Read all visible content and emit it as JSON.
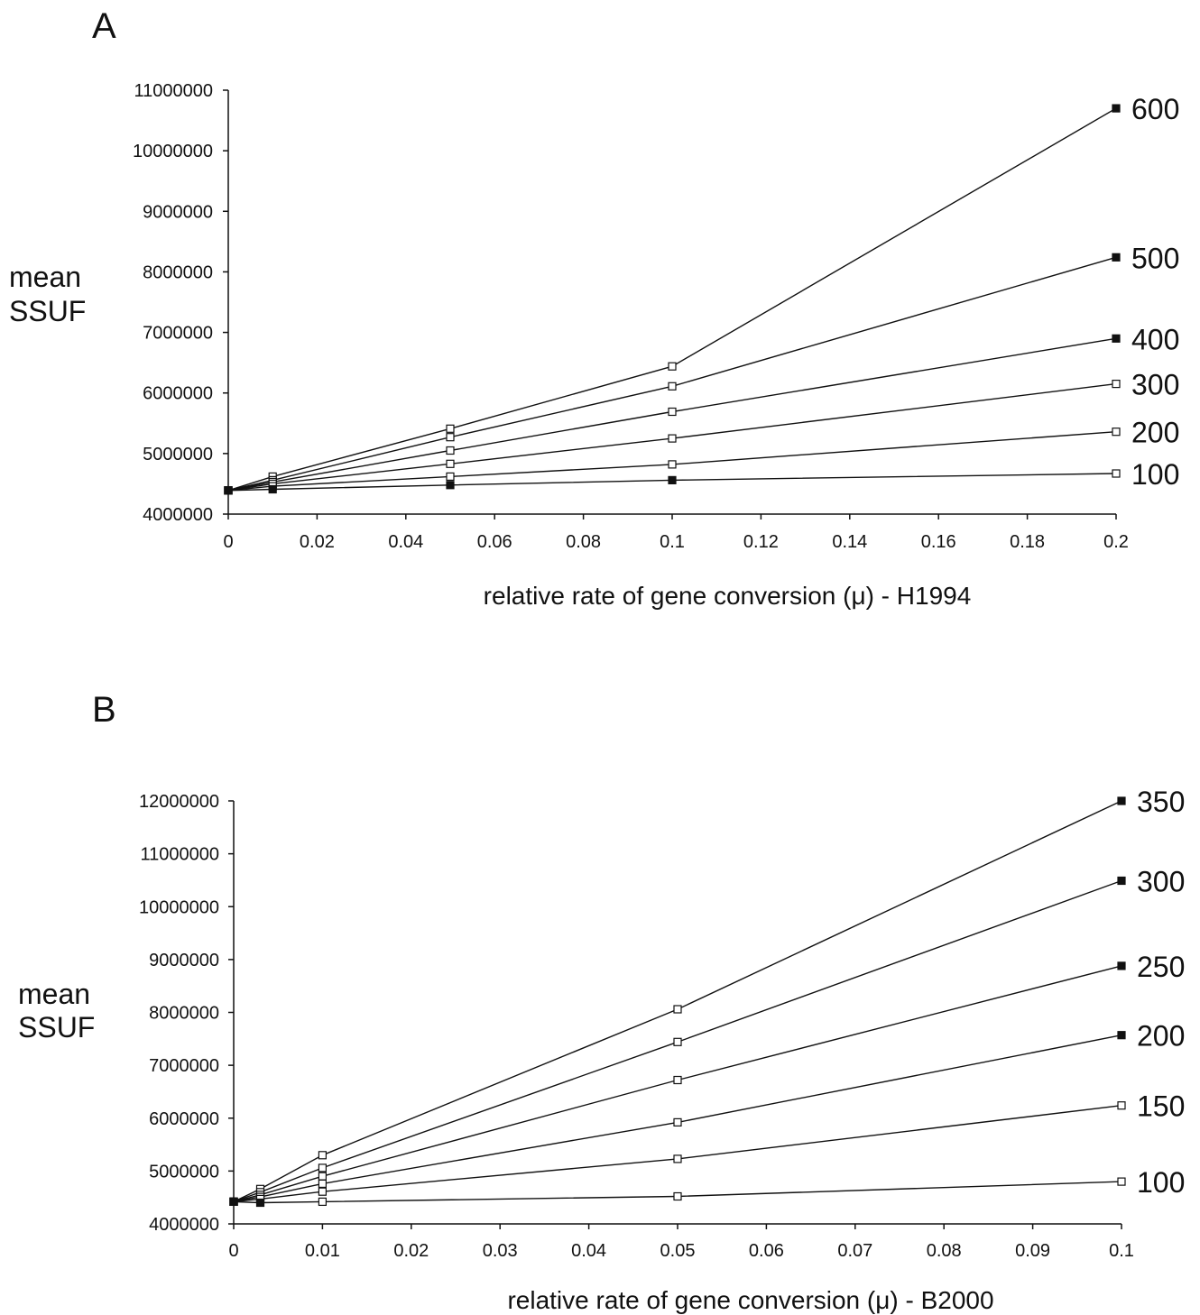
{
  "chart_data": [
    {
      "panel": "A",
      "type": "line",
      "xlabel": "relative rate of gene conversion (μ) - H1994",
      "ylabel": [
        "mean",
        "SSUF"
      ],
      "xlim": [
        0,
        0.2
      ],
      "ylim": [
        4000000,
        11000000
      ],
      "xticks": [
        "0",
        "0.02",
        "0.04",
        "0.06",
        "0.08",
        "0.1",
        "0.12",
        "0.14",
        "0.16",
        "0.18",
        "0.2"
      ],
      "yticks": [
        "4000000",
        "5000000",
        "6000000",
        "7000000",
        "8000000",
        "9000000",
        "10000000",
        "11000000"
      ],
      "grid": false,
      "x": [
        0,
        0.01,
        0.05,
        0.1,
        0.2
      ],
      "series": [
        {
          "name": "600",
          "values": [
            4390000,
            4620000,
            5410000,
            6440000,
            10700000
          ]
        },
        {
          "name": "500",
          "values": [
            4390000,
            4560000,
            5270000,
            6110000,
            8240000
          ]
        },
        {
          "name": "400",
          "values": [
            4390000,
            4530000,
            5050000,
            5690000,
            6900000
          ]
        },
        {
          "name": "300",
          "values": [
            4390000,
            4500000,
            4830000,
            5250000,
            6150000
          ]
        },
        {
          "name": "200",
          "values": [
            4390000,
            4460000,
            4620000,
            4820000,
            5360000
          ]
        },
        {
          "name": "100",
          "values": [
            4390000,
            4410000,
            4480000,
            4560000,
            4670000
          ]
        }
      ],
      "marker_fill": [
        [
          1,
          0,
          0,
          0,
          1
        ],
        [
          1,
          0,
          0,
          0,
          1
        ],
        [
          1,
          0,
          0,
          0,
          1
        ],
        [
          1,
          0,
          0,
          0,
          0
        ],
        [
          1,
          0,
          0,
          0,
          0
        ],
        [
          1,
          1,
          1,
          1,
          0
        ]
      ]
    },
    {
      "panel": "B",
      "type": "line",
      "xlabel": "relative rate of gene conversion (μ) - B2000",
      "ylabel": [
        "mean",
        "SSUF"
      ],
      "xlim": [
        0,
        0.1
      ],
      "ylim": [
        4000000,
        12000000
      ],
      "xticks": [
        "0",
        "0.01",
        "0.02",
        "0.03",
        "0.04",
        "0.05",
        "0.06",
        "0.07",
        "0.08",
        "0.09",
        "0.1"
      ],
      "yticks": [
        "4000000",
        "5000000",
        "6000000",
        "7000000",
        "8000000",
        "9000000",
        "10000000",
        "11000000",
        "12000000"
      ],
      "grid": false,
      "x": [
        0,
        0.003,
        0.01,
        0.05,
        0.1
      ],
      "series": [
        {
          "name": "350",
          "values": [
            4420000,
            4660000,
            5300000,
            8060000,
            12000000
          ]
        },
        {
          "name": "300",
          "values": [
            4420000,
            4600000,
            5060000,
            7440000,
            10490000
          ]
        },
        {
          "name": "250",
          "values": [
            4420000,
            4550000,
            4900000,
            6720000,
            8880000
          ]
        },
        {
          "name": "200",
          "values": [
            4420000,
            4510000,
            4760000,
            5920000,
            7570000
          ]
        },
        {
          "name": "150",
          "values": [
            4420000,
            4470000,
            4610000,
            5230000,
            6240000
          ]
        },
        {
          "name": "100",
          "values": [
            4420000,
            4400000,
            4420000,
            4520000,
            4800000
          ]
        }
      ],
      "marker_fill": [
        [
          1,
          0,
          0,
          0,
          1
        ],
        [
          1,
          0,
          0,
          0,
          1
        ],
        [
          1,
          0,
          0,
          0,
          1
        ],
        [
          1,
          0,
          0,
          0,
          1
        ],
        [
          1,
          0,
          0,
          0,
          0
        ],
        [
          1,
          1,
          0,
          0,
          0
        ]
      ]
    }
  ]
}
